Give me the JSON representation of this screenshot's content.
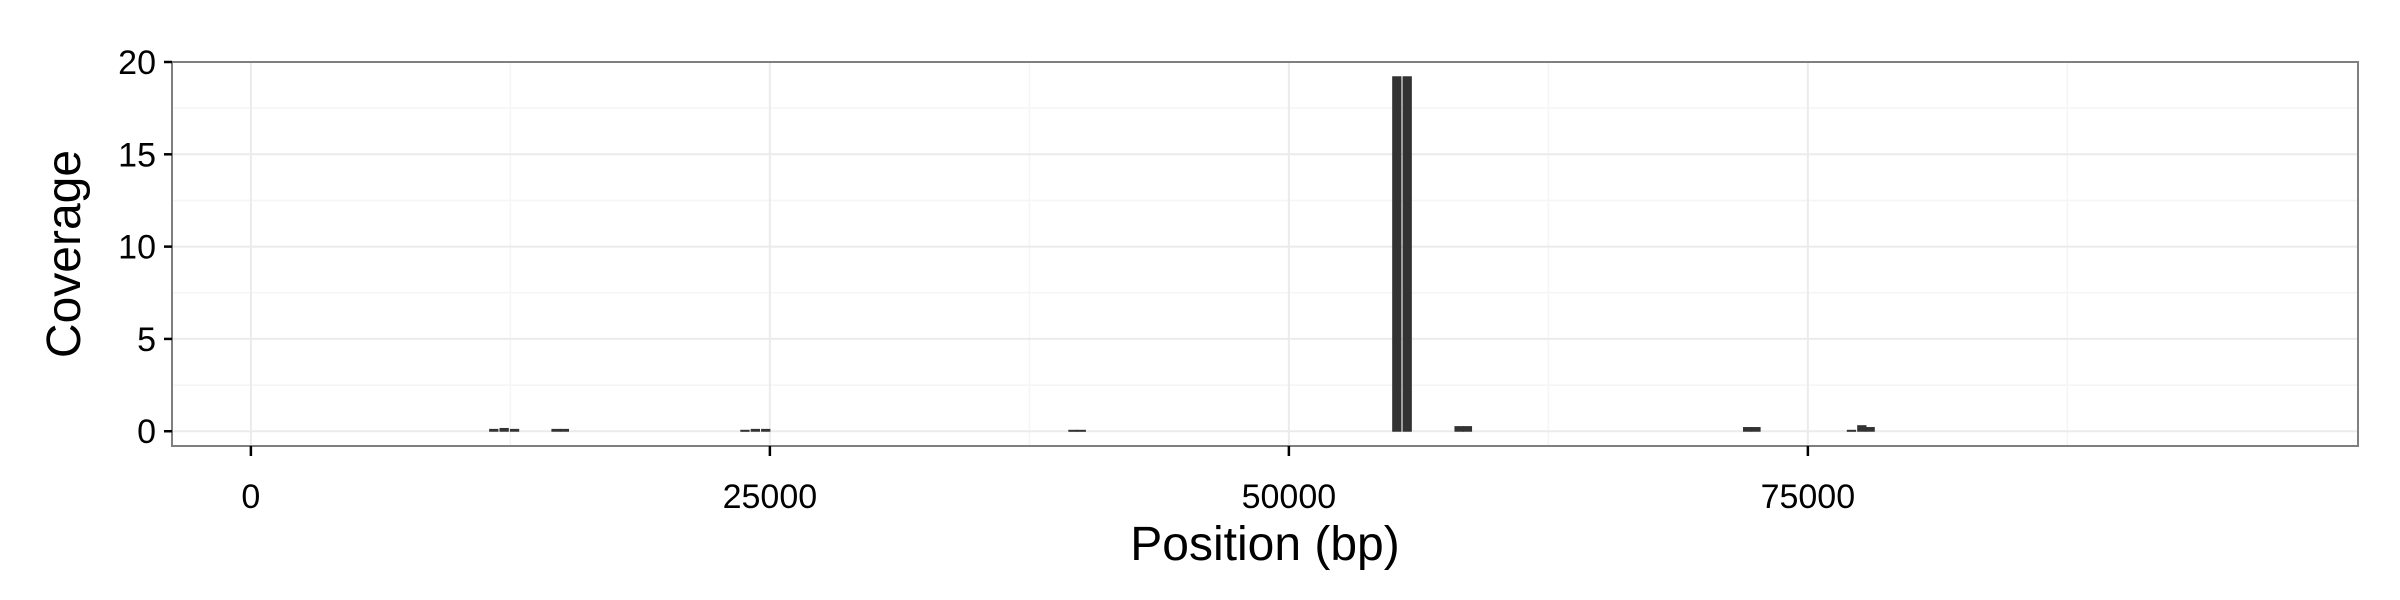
{
  "chart_data": {
    "type": "bar",
    "title": "",
    "xlabel": "Position (bp)",
    "ylabel": "Coverage",
    "xlim": [
      -3800,
      101500
    ],
    "ylim": [
      -0.8,
      20
    ],
    "x_ticks": [
      {
        "value": 0,
        "label": "0"
      },
      {
        "value": 25000,
        "label": "25000"
      },
      {
        "value": 50000,
        "label": "50000"
      },
      {
        "value": 75000,
        "label": "75000"
      }
    ],
    "y_ticks": [
      {
        "value": 0,
        "label": "0"
      },
      {
        "value": 5,
        "label": "5"
      },
      {
        "value": 10,
        "label": "10"
      },
      {
        "value": 15,
        "label": "15"
      },
      {
        "value": 20,
        "label": "20"
      }
    ],
    "grid": true,
    "bar_width_bp": 400,
    "series": [
      {
        "name": "coverage",
        "points": [
          {
            "x": 11700,
            "y": 0.1
          },
          {
            "x": 12200,
            "y": 0.15
          },
          {
            "x": 12700,
            "y": 0.1
          },
          {
            "x": 14700,
            "y": 0.1
          },
          {
            "x": 15100,
            "y": 0.1
          },
          {
            "x": 23800,
            "y": 0.05
          },
          {
            "x": 24300,
            "y": 0.1
          },
          {
            "x": 24800,
            "y": 0.1
          },
          {
            "x": 39600,
            "y": 0.05
          },
          {
            "x": 40000,
            "y": 0.05
          },
          {
            "x": 55200,
            "y": 19.2
          },
          {
            "x": 55700,
            "y": 19.2
          },
          {
            "x": 58200,
            "y": 0.25
          },
          {
            "x": 58600,
            "y": 0.25
          },
          {
            "x": 72100,
            "y": 0.2
          },
          {
            "x": 72500,
            "y": 0.2
          },
          {
            "x": 77100,
            "y": 0.05
          },
          {
            "x": 77600,
            "y": 0.3
          },
          {
            "x": 78000,
            "y": 0.2
          }
        ]
      }
    ],
    "colors": {
      "bar_fill": "#333333",
      "panel_border": "#7f7f7f",
      "grid_major": "#ebebeb",
      "grid_minor": "#f5f5f5"
    }
  }
}
